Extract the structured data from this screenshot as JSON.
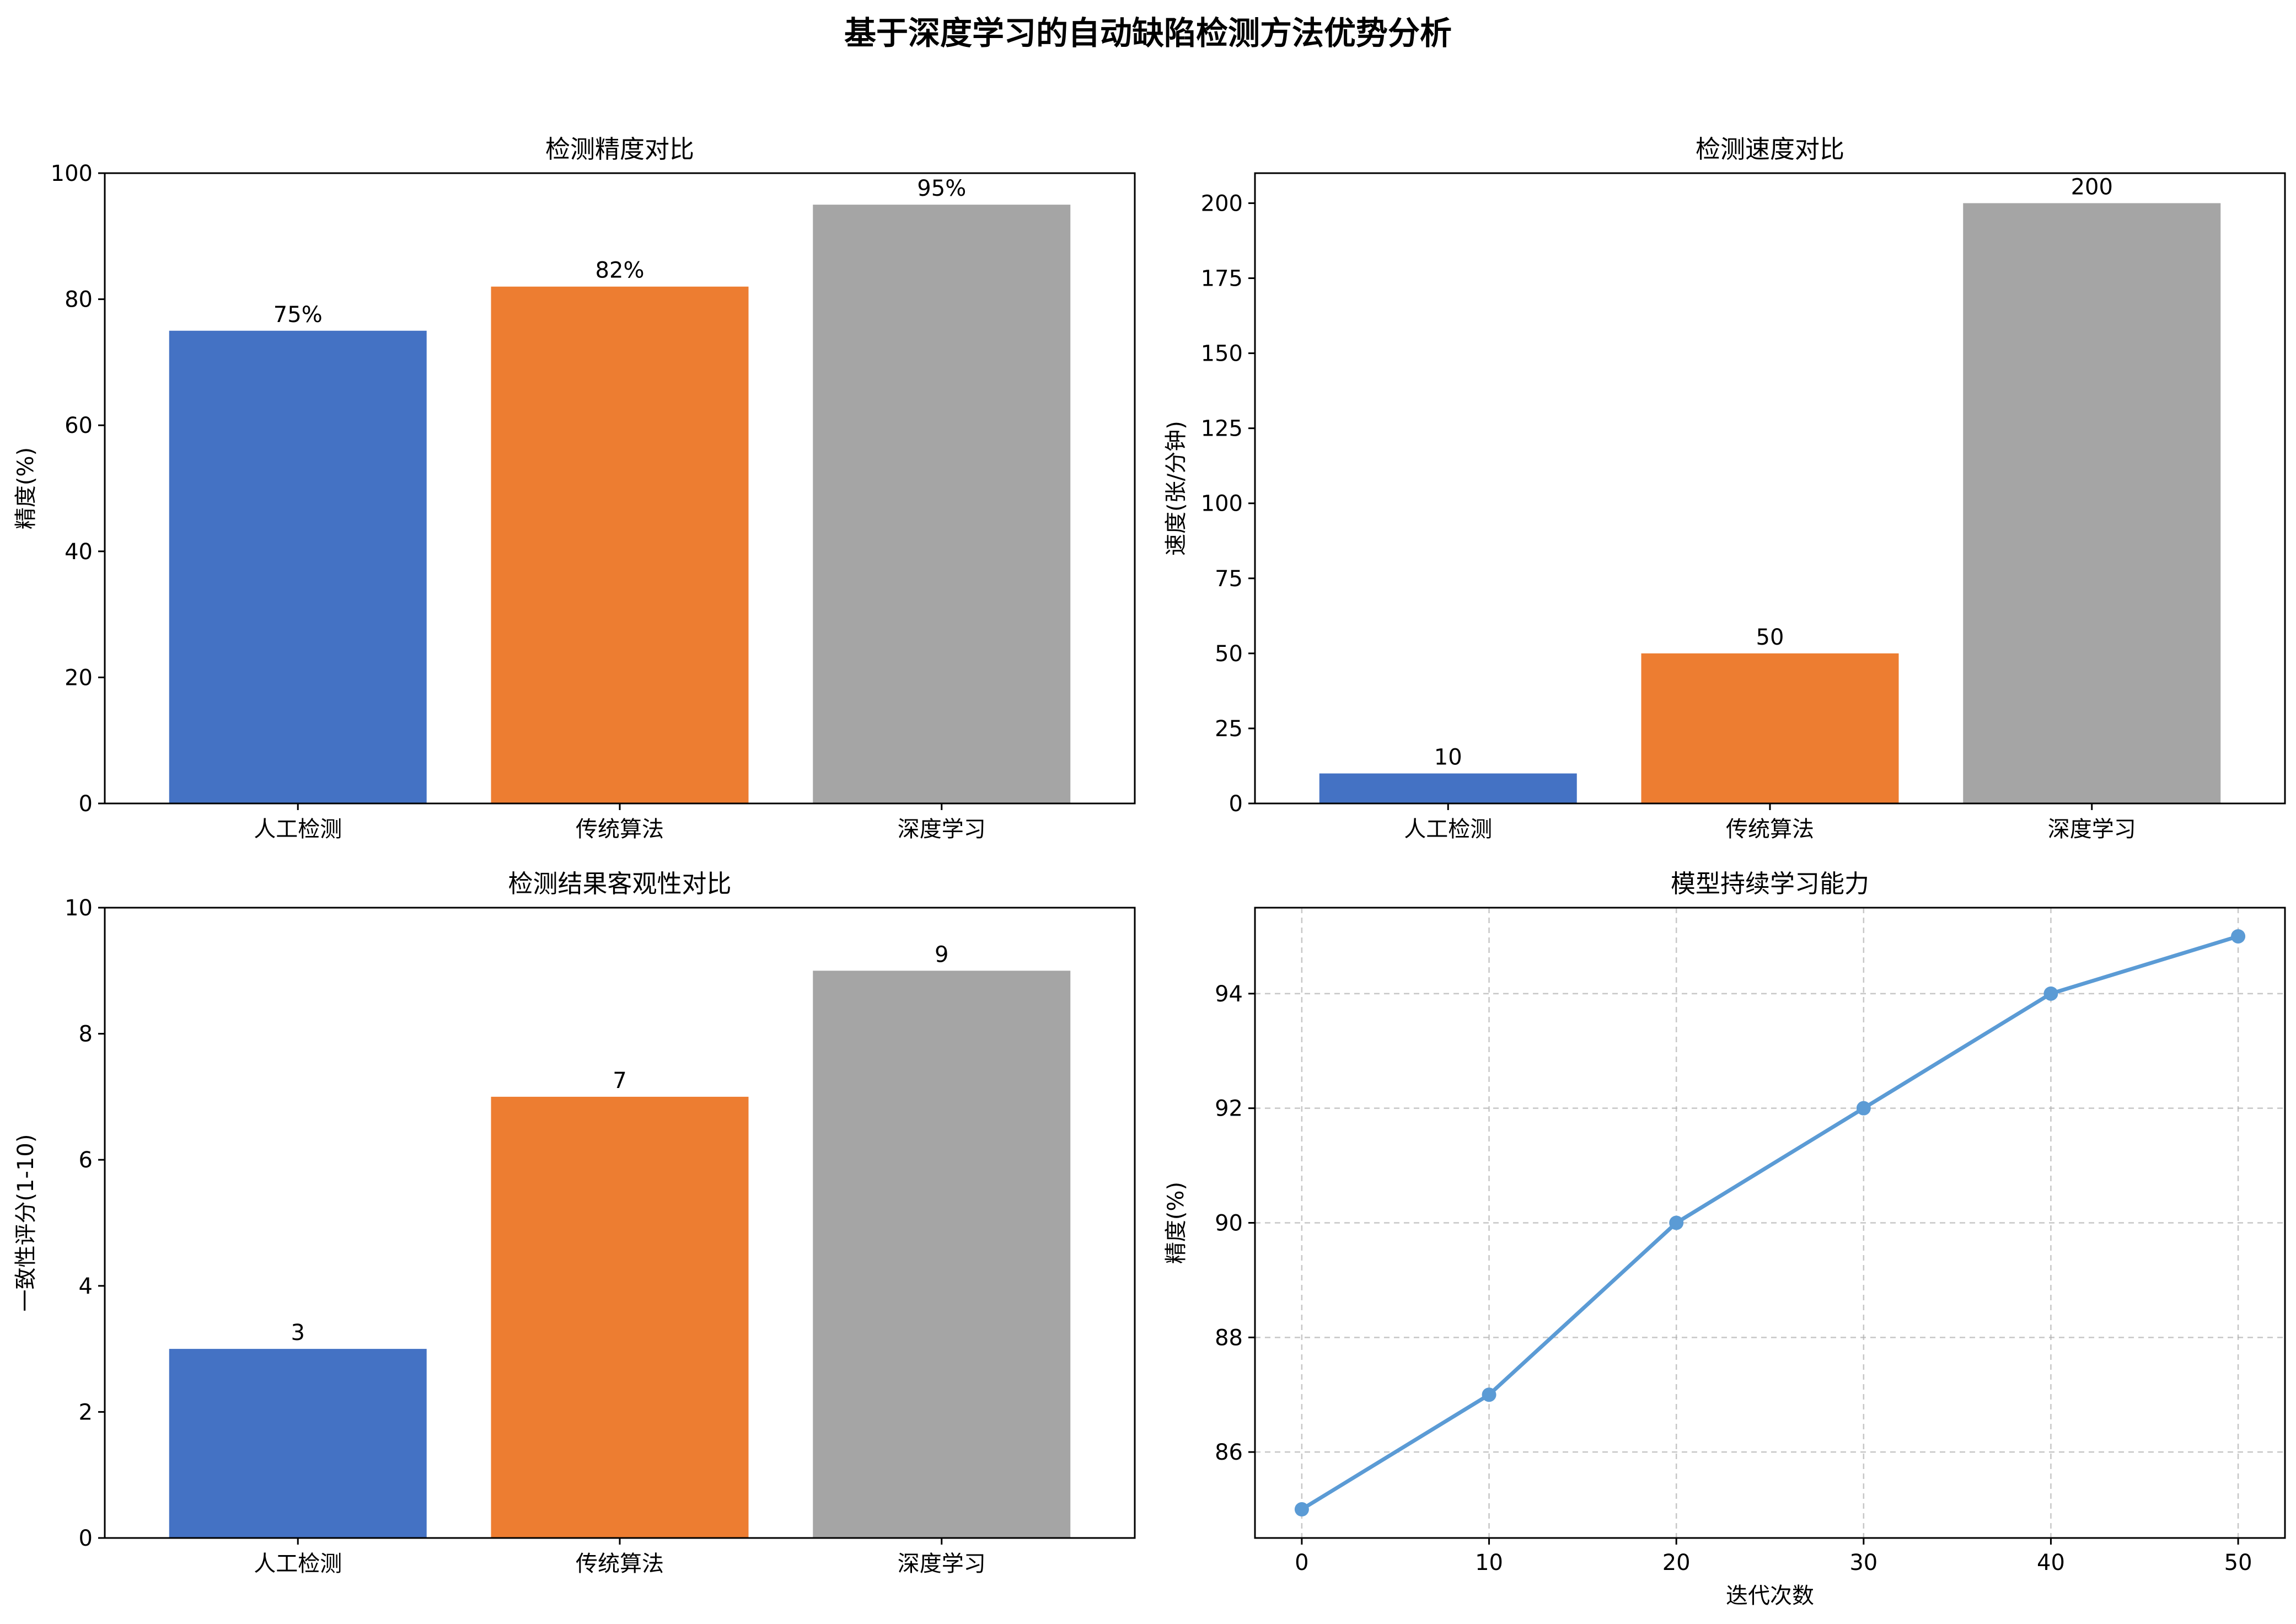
{
  "title": "基于深度学习的自动缺陷检测方法优势分析",
  "chart_data": [
    {
      "type": "bar",
      "title": "检测精度对比",
      "categories": [
        "人工检测",
        "传统算法",
        "深度学习"
      ],
      "values": [
        75,
        82,
        95
      ],
      "labels": [
        "75%",
        "82%",
        "95%"
      ],
      "colors": [
        "#4472c4",
        "#ed7d31",
        "#a5a5a5"
      ],
      "ylabel": "精度(%)",
      "xlabel": "",
      "ylim": [
        0,
        100
      ],
      "yticks": [
        0,
        20,
        40,
        60,
        80,
        100
      ],
      "grid": false
    },
    {
      "type": "bar",
      "title": "检测速度对比",
      "categories": [
        "人工检测",
        "传统算法",
        "深度学习"
      ],
      "values": [
        10,
        50,
        200
      ],
      "labels": [
        "10",
        "50",
        "200"
      ],
      "colors": [
        "#4472c4",
        "#ed7d31",
        "#a5a5a5"
      ],
      "ylabel": "速度(张/分钟)",
      "xlabel": "",
      "ylim": [
        0,
        210
      ],
      "yticks": [
        0,
        25,
        50,
        75,
        100,
        125,
        150,
        175,
        200
      ],
      "grid": false
    },
    {
      "type": "bar",
      "title": "检测结果客观性对比",
      "categories": [
        "人工检测",
        "传统算法",
        "深度学习"
      ],
      "values": [
        3,
        7,
        9
      ],
      "labels": [
        "3",
        "7",
        "9"
      ],
      "colors": [
        "#4472c4",
        "#ed7d31",
        "#a5a5a5"
      ],
      "ylabel": "一致性评分(1-10)",
      "xlabel": "",
      "ylim": [
        0,
        10
      ],
      "yticks": [
        0,
        2,
        4,
        6,
        8,
        10
      ],
      "grid": false
    },
    {
      "type": "line",
      "title": "模型持续学习能力",
      "x": [
        0,
        10,
        20,
        30,
        40,
        50
      ],
      "y": [
        85,
        87,
        90,
        92,
        94,
        95
      ],
      "color": "#5b9bd5",
      "ylabel": "精度(%)",
      "xlabel": "迭代次数",
      "xlim": [
        -2.5,
        52.5
      ],
      "ylim": [
        84.5,
        95.5
      ],
      "xticks": [
        0,
        10,
        20,
        30,
        40,
        50
      ],
      "yticks": [
        86,
        88,
        90,
        92,
        94
      ],
      "grid": true
    }
  ]
}
